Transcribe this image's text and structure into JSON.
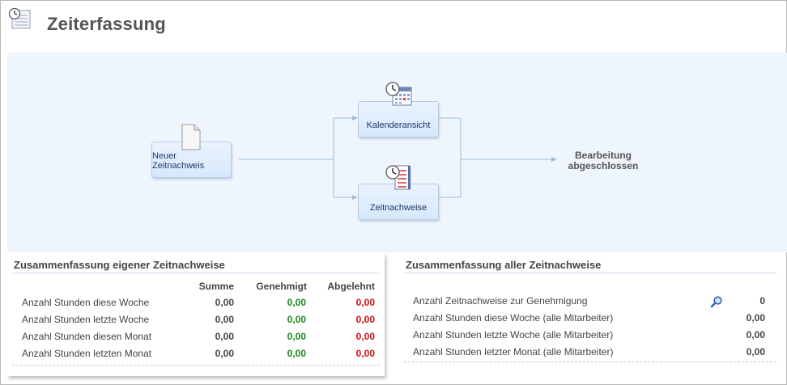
{
  "header": {
    "title": "Zeiterfassung",
    "icon": "timesheet-icon"
  },
  "workflow": {
    "start_box": "Neuer Zeitnachweis",
    "calendar_box": "Kalenderansicht",
    "timesheets_box": "Zeitnachweise",
    "end_label_line1": "Bearbeitung",
    "end_label_line2": "abgeschlossen"
  },
  "own_summary": {
    "title": "Zusammenfassung eigener Zeitnachweise",
    "columns": [
      "Summe",
      "Genehmigt",
      "Abgelehnt"
    ],
    "rows": [
      {
        "label": "Anzahl Stunden diese Woche",
        "sum": "0,00",
        "approved": "0,00",
        "rejected": "0,00"
      },
      {
        "label": "Anzahl Stunden letzte Woche",
        "sum": "0,00",
        "approved": "0,00",
        "rejected": "0,00"
      },
      {
        "label": "Anzahl Stunden diesen Monat",
        "sum": "0,00",
        "approved": "0,00",
        "rejected": "0,00"
      },
      {
        "label": "Anzahl Stunden letzten Monat",
        "sum": "0,00",
        "approved": "0,00",
        "rejected": "0,00"
      }
    ]
  },
  "all_summary": {
    "title": "Zusammenfassung aller Zeitnachweise",
    "rows": [
      {
        "label": "Anzahl Zeitnachweise zur Genehmigung",
        "value": "0"
      },
      {
        "label": "Anzahl Stunden diese Woche (alle Mitarbeiter)",
        "value": "0,00"
      },
      {
        "label": "Anzahl Stunden letzte Woche (alle Mitarbeiter)",
        "value": "0,00"
      },
      {
        "label": "Anzahl Stunden letzter Monat (alle Mitarbeiter)",
        "value": "0,00"
      }
    ]
  },
  "colors": {
    "approved": "#1a8a1a",
    "rejected": "#cc1111",
    "workflow_bg": "#eef5fd"
  }
}
